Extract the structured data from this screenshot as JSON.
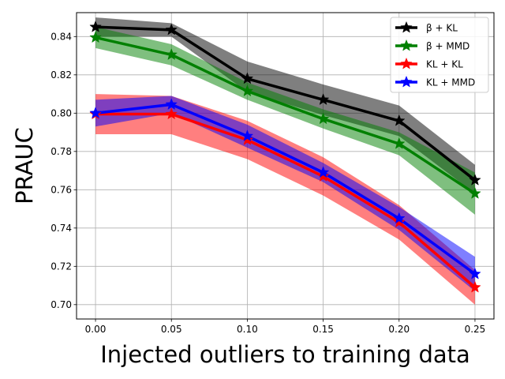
{
  "chart_data": {
    "type": "line",
    "xlabel": "Injected outliers to training data",
    "ylabel": "PRAUC",
    "xlim": [
      -0.0125,
      0.2625
    ],
    "ylim": [
      0.6925,
      0.8525
    ],
    "x_ticks": [
      "0.00",
      "0.05",
      "0.10",
      "0.15",
      "0.20",
      "0.25"
    ],
    "y_ticks": [
      "0.70",
      "0.72",
      "0.74",
      "0.76",
      "0.78",
      "0.80",
      "0.82",
      "0.84"
    ],
    "x": [
      0.0,
      0.05,
      0.1,
      0.15,
      0.2,
      0.25
    ],
    "grid": true,
    "legend_position": "top-right",
    "series": [
      {
        "name": "β + KL",
        "color": "#000000",
        "values": [
          0.845,
          0.8435,
          0.818,
          0.807,
          0.796,
          0.765
        ],
        "band_lower": [
          0.84,
          0.84,
          0.811,
          0.799,
          0.788,
          0.758
        ],
        "band_upper": [
          0.85,
          0.847,
          0.827,
          0.815,
          0.804,
          0.773
        ]
      },
      {
        "name": "β + MMD",
        "color": "#008000",
        "values": [
          0.8395,
          0.8305,
          0.8115,
          0.797,
          0.784,
          0.758
        ],
        "band_lower": [
          0.834,
          0.825,
          0.807,
          0.792,
          0.778,
          0.747
        ],
        "band_upper": [
          0.845,
          0.836,
          0.816,
          0.802,
          0.79,
          0.769
        ]
      },
      {
        "name": "KL + KL",
        "color": "#ff0000",
        "values": [
          0.7995,
          0.7995,
          0.786,
          0.767,
          0.743,
          0.709
        ],
        "band_lower": [
          0.789,
          0.789,
          0.776,
          0.757,
          0.734,
          0.7
        ],
        "band_upper": [
          0.81,
          0.809,
          0.796,
          0.777,
          0.752,
          0.718
        ]
      },
      {
        "name": "KL + MMD",
        "color": "#0000ff",
        "values": [
          0.8,
          0.8045,
          0.788,
          0.769,
          0.745,
          0.716
        ],
        "band_lower": [
          0.793,
          0.8,
          0.782,
          0.764,
          0.739,
          0.707
        ],
        "band_upper": [
          0.807,
          0.809,
          0.794,
          0.774,
          0.751,
          0.725
        ]
      }
    ]
  }
}
